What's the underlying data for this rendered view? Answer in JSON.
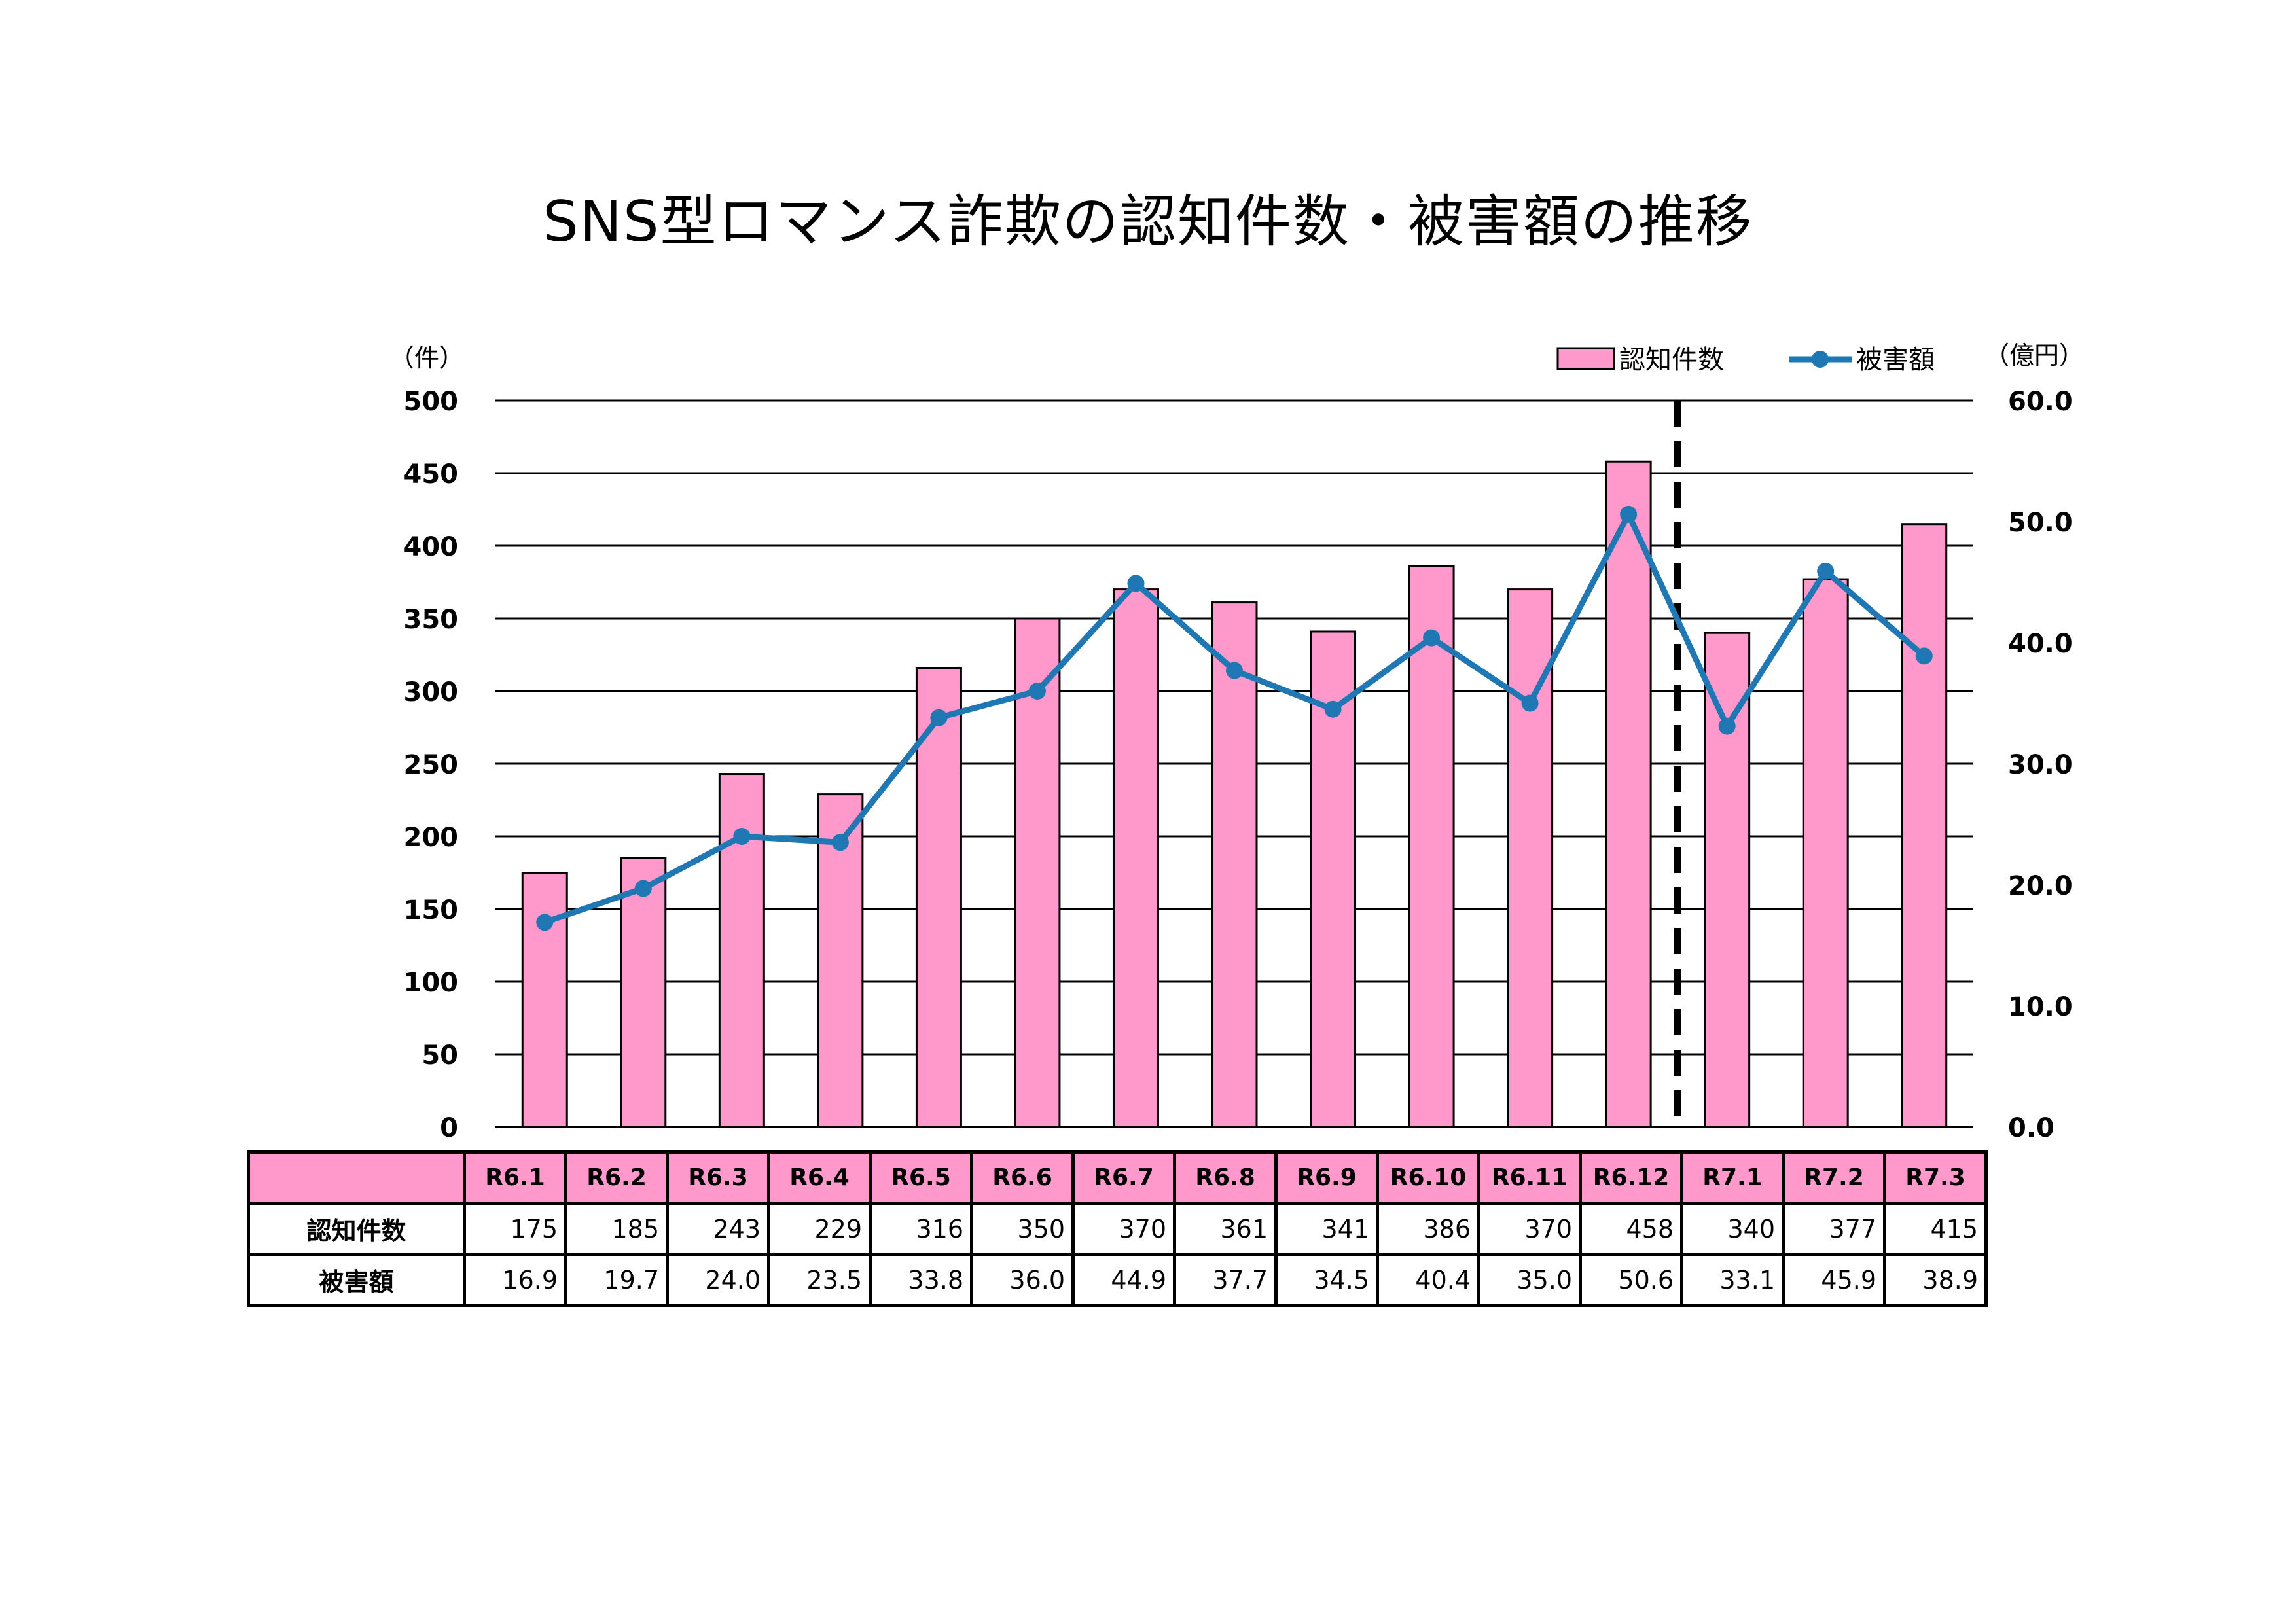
{
  "title": "SNS型ロマンス詐欺の認知件数・被害額の推移",
  "colors": {
    "bar": "#ff99cc",
    "line": "#1f77b4",
    "axis": "#000000"
  },
  "chart_data": {
    "type": "bar",
    "categories": [
      "R6.1",
      "R6.2",
      "R6.3",
      "R6.4",
      "R6.5",
      "R6.6",
      "R6.7",
      "R6.8",
      "R6.9",
      "R6.10",
      "R6.11",
      "R6.12",
      "R7.1",
      "R7.2",
      "R7.3"
    ],
    "series": [
      {
        "name": "認知件数",
        "type": "bar",
        "axis": "left",
        "values": [
          175,
          185,
          243,
          229,
          316,
          350,
          370,
          361,
          341,
          386,
          370,
          458,
          340,
          377,
          415
        ]
      },
      {
        "name": "被害額",
        "type": "line",
        "axis": "right",
        "values": [
          16.9,
          19.7,
          24.0,
          23.5,
          33.8,
          36.0,
          44.9,
          37.7,
          34.5,
          40.4,
          35.0,
          50.6,
          33.1,
          45.9,
          38.9
        ]
      }
    ],
    "left_axis": {
      "unit": "（件）",
      "ylim": [
        0,
        500
      ],
      "ticks": [
        "0",
        "50",
        "100",
        "150",
        "200",
        "250",
        "300",
        "350",
        "400",
        "450",
        "500"
      ]
    },
    "right_axis": {
      "unit": "（億円）",
      "ylim": [
        0,
        60
      ],
      "ticks": [
        "0.0",
        "10.0",
        "20.0",
        "30.0",
        "40.0",
        "50.0",
        "60.0"
      ]
    },
    "grid": true,
    "legend": "top-right",
    "divider_after": "R6.12"
  },
  "table": {
    "rows": [
      {
        "label": "認知件数",
        "values": [
          "175",
          "185",
          "243",
          "229",
          "316",
          "350",
          "370",
          "361",
          "341",
          "386",
          "370",
          "458",
          "340",
          "377",
          "415"
        ]
      },
      {
        "label": "被害額",
        "values": [
          "16.9",
          "19.7",
          "24.0",
          "23.5",
          "33.8",
          "36.0",
          "44.9",
          "37.7",
          "34.5",
          "40.4",
          "35.0",
          "50.6",
          "33.1",
          "45.9",
          "38.9"
        ]
      }
    ]
  }
}
